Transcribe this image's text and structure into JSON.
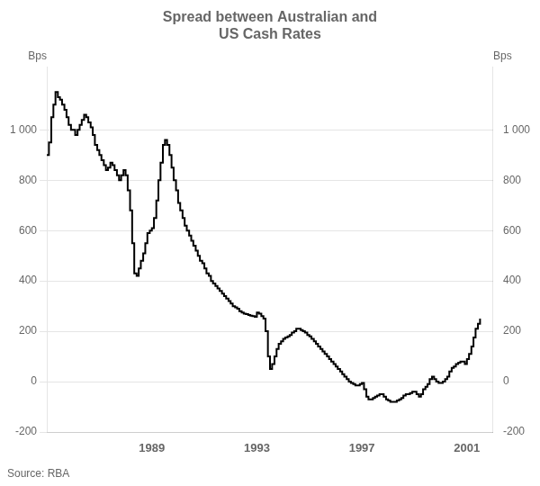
{
  "chart_data": {
    "type": "step",
    "title": "Spread between Australian and\nUS Cash Rates",
    "ylabel": "Bps",
    "y2label": "Bps",
    "source": "Source: RBA",
    "color": "#000000",
    "grid": true,
    "xlim": [
      1985.0,
      2002.0
    ],
    "xticks": [
      1989,
      1993,
      1997,
      2001
    ],
    "ylim": [
      -200,
      1250
    ],
    "yticks": [
      -200,
      0,
      200,
      400,
      600,
      800,
      {
        "value": 1000,
        "label": "1 000"
      }
    ],
    "y2lim": [
      -200,
      1250
    ],
    "y2ticks": [
      -200,
      0,
      200,
      400,
      600,
      800,
      {
        "value": 1000,
        "label": "1 000"
      }
    ],
    "x": [
      1985.0,
      1985.08,
      1985.17,
      1985.25,
      1985.33,
      1985.42,
      1985.5,
      1985.58,
      1985.67,
      1985.75,
      1985.83,
      1985.92,
      1986.0,
      1986.08,
      1986.17,
      1986.25,
      1986.33,
      1986.42,
      1986.5,
      1986.58,
      1986.67,
      1986.75,
      1986.83,
      1986.92,
      1987.0,
      1987.08,
      1987.17,
      1987.25,
      1987.33,
      1987.42,
      1987.5,
      1987.58,
      1987.67,
      1987.75,
      1987.83,
      1987.92,
      1988.0,
      1988.08,
      1988.17,
      1988.25,
      1988.33,
      1988.42,
      1988.5,
      1988.58,
      1988.67,
      1988.75,
      1988.83,
      1988.92,
      1989.0,
      1989.08,
      1989.17,
      1989.25,
      1989.33,
      1989.42,
      1989.5,
      1989.58,
      1989.67,
      1989.75,
      1989.83,
      1989.92,
      1990.0,
      1990.08,
      1990.17,
      1990.25,
      1990.33,
      1990.42,
      1990.5,
      1990.58,
      1990.67,
      1990.75,
      1990.83,
      1990.92,
      1991.0,
      1991.08,
      1991.17,
      1991.25,
      1991.33,
      1991.42,
      1991.5,
      1991.58,
      1991.67,
      1991.75,
      1991.83,
      1991.92,
      1992.0,
      1992.08,
      1992.17,
      1992.25,
      1992.33,
      1992.42,
      1992.5,
      1992.58,
      1992.67,
      1992.75,
      1992.83,
      1992.92,
      1993.0,
      1993.08,
      1993.17,
      1993.25,
      1993.33,
      1993.42,
      1993.5,
      1993.58,
      1993.67,
      1993.75,
      1993.83,
      1993.92,
      1994.0,
      1994.08,
      1994.17,
      1994.25,
      1994.33,
      1994.42,
      1994.5,
      1994.58,
      1994.67,
      1994.75,
      1994.83,
      1994.92,
      1995.0,
      1995.08,
      1995.17,
      1995.25,
      1995.33,
      1995.42,
      1995.5,
      1995.58,
      1995.67,
      1995.75,
      1995.83,
      1995.92,
      1996.0,
      1996.08,
      1996.17,
      1996.25,
      1996.33,
      1996.42,
      1996.5,
      1996.58,
      1996.67,
      1996.75,
      1996.83,
      1996.92,
      1997.0,
      1997.08,
      1997.17,
      1997.25,
      1997.33,
      1997.42,
      1997.5,
      1997.58,
      1997.67,
      1997.75,
      1997.83,
      1997.92,
      1998.0,
      1998.08,
      1998.17,
      1998.25,
      1998.33,
      1998.42,
      1998.5,
      1998.58,
      1998.67,
      1998.75,
      1998.83,
      1998.92,
      1999.0,
      1999.08,
      1999.17,
      1999.25,
      1999.33,
      1999.42,
      1999.5,
      1999.58,
      1999.67,
      1999.75,
      1999.83,
      1999.92,
      2000.0,
      2000.08,
      2000.17,
      2000.25,
      2000.33,
      2000.42,
      2000.5,
      2000.58,
      2000.67,
      2000.75,
      2000.83,
      2000.92,
      2001.0,
      2001.08,
      2001.17,
      2001.25,
      2001.33,
      2001.42,
      2001.5
    ],
    "values": [
      900,
      950,
      1050,
      1100,
      1150,
      1130,
      1120,
      1100,
      1080,
      1050,
      1020,
      1000,
      1000,
      980,
      1000,
      1020,
      1040,
      1060,
      1050,
      1030,
      1010,
      980,
      940,
      920,
      900,
      880,
      860,
      840,
      850,
      870,
      860,
      840,
      820,
      800,
      820,
      840,
      820,
      760,
      680,
      550,
      430,
      420,
      450,
      480,
      510,
      550,
      590,
      600,
      610,
      650,
      720,
      800,
      870,
      940,
      960,
      940,
      900,
      850,
      800,
      760,
      710,
      680,
      650,
      620,
      600,
      580,
      560,
      540,
      520,
      500,
      480,
      470,
      450,
      430,
      420,
      400,
      390,
      380,
      370,
      360,
      350,
      340,
      330,
      320,
      310,
      300,
      295,
      290,
      280,
      275,
      270,
      268,
      265,
      262,
      260,
      258,
      275,
      270,
      260,
      250,
      200,
      100,
      50,
      70,
      100,
      130,
      150,
      160,
      170,
      175,
      180,
      185,
      195,
      200,
      210,
      210,
      205,
      200,
      195,
      185,
      180,
      170,
      160,
      150,
      140,
      130,
      120,
      110,
      100,
      90,
      80,
      70,
      60,
      50,
      40,
      30,
      20,
      10,
      0,
      -5,
      -10,
      -15,
      -15,
      -10,
      -5,
      -30,
      -60,
      -70,
      -70,
      -65,
      -60,
      -55,
      -50,
      -50,
      -60,
      -70,
      -75,
      -80,
      -80,
      -80,
      -75,
      -70,
      -65,
      -55,
      -50,
      -50,
      -45,
      -40,
      -40,
      -50,
      -60,
      -50,
      -30,
      -20,
      -10,
      10,
      20,
      10,
      0,
      -5,
      -5,
      0,
      10,
      20,
      40,
      55,
      60,
      70,
      75,
      80,
      80,
      70,
      90,
      110,
      140,
      175,
      210,
      230,
      250
    ]
  }
}
